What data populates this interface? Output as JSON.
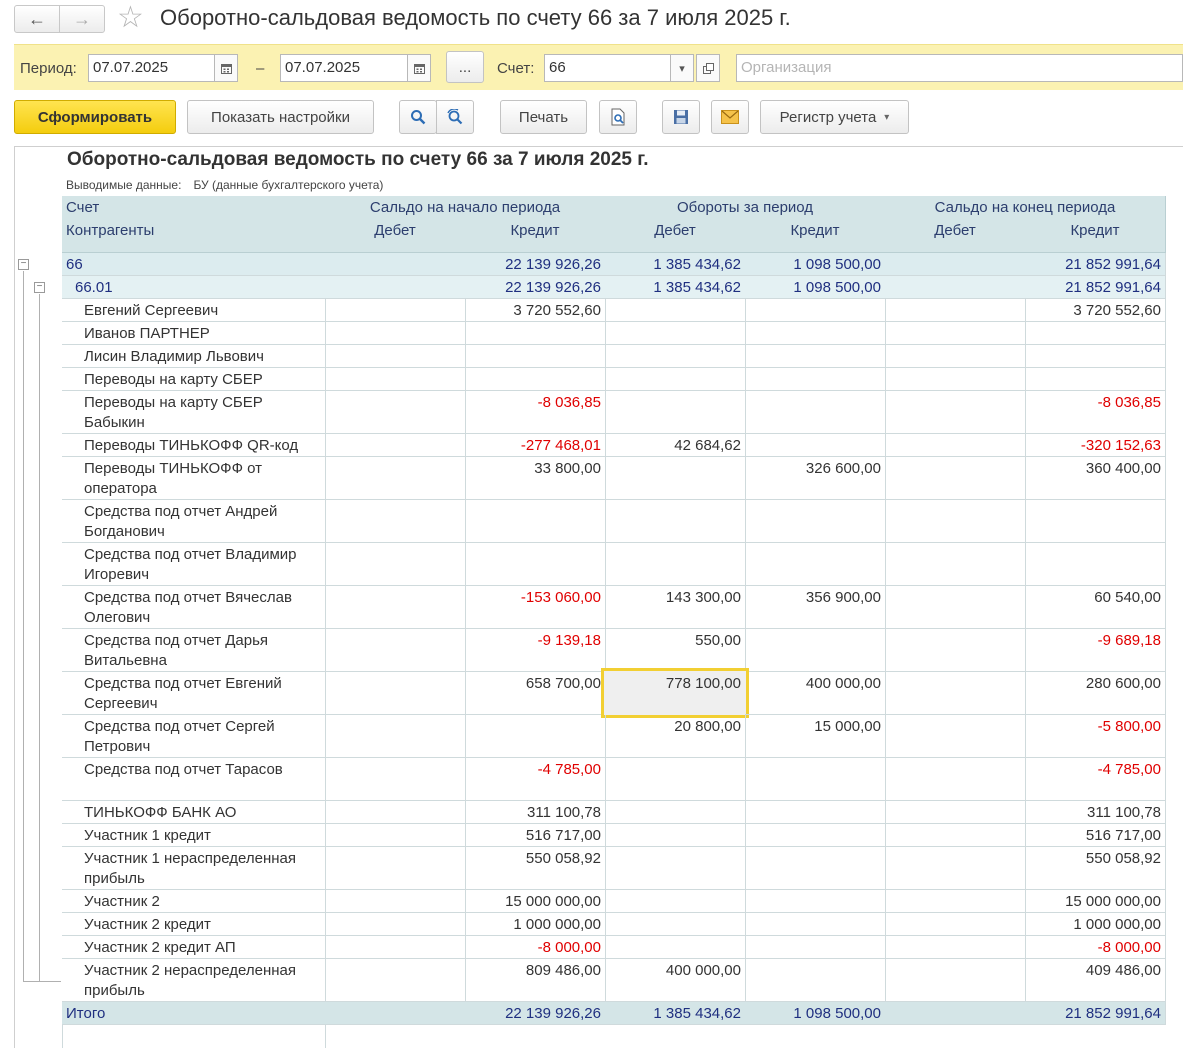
{
  "window": {
    "title": "Оборотно-сальдовая ведомость по счету 66 за 7 июля 2025 г.",
    "back_icon": "arrow-left-icon",
    "forward_icon": "arrow-right-icon",
    "favorite_icon": "star-icon"
  },
  "period_bar": {
    "period_label": "Период:",
    "date_from": "07.07.2025",
    "dash": "–",
    "date_to": "07.07.2025",
    "choose_label": "...",
    "account_label": "Счет:",
    "account_value": "66",
    "organization_placeholder": "Организация"
  },
  "toolbar": {
    "generate_label": "Сформировать",
    "settings_label": "Показать настройки",
    "print_label": "Печать",
    "register_label": "Регистр учета"
  },
  "report": {
    "title": "Оборотно-сальдовая ведомость по счету 66 за 7 июля 2025 г.",
    "output_label": "Выводимые данные:",
    "output_value": "БУ (данные бухгалтерского учета)",
    "headers": {
      "account": "Счет",
      "counterparties": "Контрагенты",
      "opening": "Сальдо на начало периода",
      "turnover": "Обороты за период",
      "closing": "Сальдо на конец периода",
      "debit": "Дебет",
      "credit": "Кредит"
    },
    "group_rows": [
      {
        "name": "66",
        "open_d": "",
        "open_c": "22 139 926,26",
        "turn_d": "1 385 434,62",
        "turn_c": "1 098 500,00",
        "close_d": "",
        "close_c": "21 852 991,64"
      },
      {
        "name": "66.01",
        "open_d": "",
        "open_c": "22 139 926,26",
        "turn_d": "1 385 434,62",
        "turn_c": "1 098 500,00",
        "close_d": "",
        "close_c": "21 852 991,64"
      }
    ],
    "rows": [
      {
        "name": "Евгений Сергеевич",
        "open_d": "",
        "open_c": "3 720 552,60",
        "turn_d": "",
        "turn_c": "",
        "close_d": "",
        "close_c": "3 720 552,60"
      },
      {
        "name": "Иванов ПАРТНЕР",
        "open_d": "",
        "open_c": "",
        "turn_d": "",
        "turn_c": "",
        "close_d": "",
        "close_c": ""
      },
      {
        "name": "Лисин Владимир Львович",
        "open_d": "",
        "open_c": "",
        "turn_d": "",
        "turn_c": "",
        "close_d": "",
        "close_c": ""
      },
      {
        "name": "Переводы на карту СБЕР",
        "open_d": "",
        "open_c": "",
        "turn_d": "",
        "turn_c": "",
        "close_d": "",
        "close_c": ""
      },
      {
        "name": "Переводы на карту СБЕР Бабыкин",
        "open_d": "",
        "open_c": "-8 036,85",
        "turn_d": "",
        "turn_c": "",
        "close_d": "",
        "close_c": "-8 036,85"
      },
      {
        "name": "Переводы ТИНЬКОФФ QR-код",
        "open_d": "",
        "open_c": "-277 468,01",
        "turn_d": "42 684,62",
        "turn_c": "",
        "close_d": "",
        "close_c": "-320 152,63"
      },
      {
        "name": "Переводы ТИНЬКОФФ от оператора",
        "open_d": "",
        "open_c": "33 800,00",
        "turn_d": "",
        "turn_c": "326 600,00",
        "close_d": "",
        "close_c": "360 400,00"
      },
      {
        "name": "Средства под отчет Андрей Богданович",
        "open_d": "",
        "open_c": "",
        "turn_d": "",
        "turn_c": "",
        "close_d": "",
        "close_c": ""
      },
      {
        "name": "Средства под отчет Владимир Игоревич",
        "open_d": "",
        "open_c": "",
        "turn_d": "",
        "turn_c": "",
        "close_d": "",
        "close_c": ""
      },
      {
        "name": "Средства под отчет Вячеслав Олегович",
        "open_d": "",
        "open_c": "-153 060,00",
        "turn_d": "143 300,00",
        "turn_c": "356 900,00",
        "close_d": "",
        "close_c": "60 540,00"
      },
      {
        "name": "Средства под отчет Дарья Витальевна",
        "open_d": "",
        "open_c": "-9 139,18",
        "turn_d": "550,00",
        "turn_c": "",
        "close_d": "",
        "close_c": "-9 689,18"
      },
      {
        "name": "Средства под отчет Евгений Сергеевич",
        "open_d": "",
        "open_c": "658 700,00",
        "turn_d": "778 100,00",
        "turn_c": "400 000,00",
        "close_d": "",
        "close_c": "280 600,00"
      },
      {
        "name": "Средства под отчет Сергей Петрович",
        "open_d": "",
        "open_c": "",
        "turn_d": "20 800,00",
        "turn_c": "15 000,00",
        "close_d": "",
        "close_c": "-5 800,00"
      },
      {
        "name": "Средства под отчет Тарасов",
        "open_d": "",
        "open_c": "-4 785,00",
        "turn_d": "",
        "turn_c": "",
        "close_d": "",
        "close_c": "-4 785,00"
      },
      {
        "name": "ТИНЬКОФФ БАНК АО",
        "open_d": "",
        "open_c": "311 100,78",
        "turn_d": "",
        "turn_c": "",
        "close_d": "",
        "close_c": "311 100,78"
      },
      {
        "name": "Участник 1 кредит",
        "open_d": "",
        "open_c": "516 717,00",
        "turn_d": "",
        "turn_c": "",
        "close_d": "",
        "close_c": "516 717,00"
      },
      {
        "name": "Участник 1 нераспределенная прибыль",
        "open_d": "",
        "open_c": "550 058,92",
        "turn_d": "",
        "turn_c": "",
        "close_d": "",
        "close_c": "550 058,92"
      },
      {
        "name": "Участник 2",
        "open_d": "",
        "open_c": "15 000 000,00",
        "turn_d": "",
        "turn_c": "",
        "close_d": "",
        "close_c": "15 000 000,00"
      },
      {
        "name": "Участник 2 кредит",
        "open_d": "",
        "open_c": "1 000 000,00",
        "turn_d": "",
        "turn_c": "",
        "close_d": "",
        "close_c": "1 000 000,00"
      },
      {
        "name": "Участник 2 кредит АП",
        "open_d": "",
        "open_c": "-8 000,00",
        "turn_d": "",
        "turn_c": "",
        "close_d": "",
        "close_c": "-8 000,00"
      },
      {
        "name": "Участник 2 нераспределенная прибыль",
        "open_d": "",
        "open_c": "809 486,00",
        "turn_d": "400 000,00",
        "turn_c": "",
        "close_d": "",
        "close_c": "409 486,00"
      }
    ],
    "total": {
      "name": "Итого",
      "open_d": "",
      "open_c": "22 139 926,26",
      "turn_d": "1 385 434,62",
      "turn_c": "1 098 500,00",
      "close_d": "",
      "close_c": "21 852 991,64"
    },
    "selected_cell": {
      "row": 11,
      "column": "turn_d"
    }
  },
  "colors": {
    "negative": "#e00000",
    "group_text": "#1f2f80",
    "header_bg": "#d4e5e7",
    "period_bg": "#fbf2b2",
    "primary_button": "#f4cd0e",
    "selection_border": "#f2cf32"
  }
}
